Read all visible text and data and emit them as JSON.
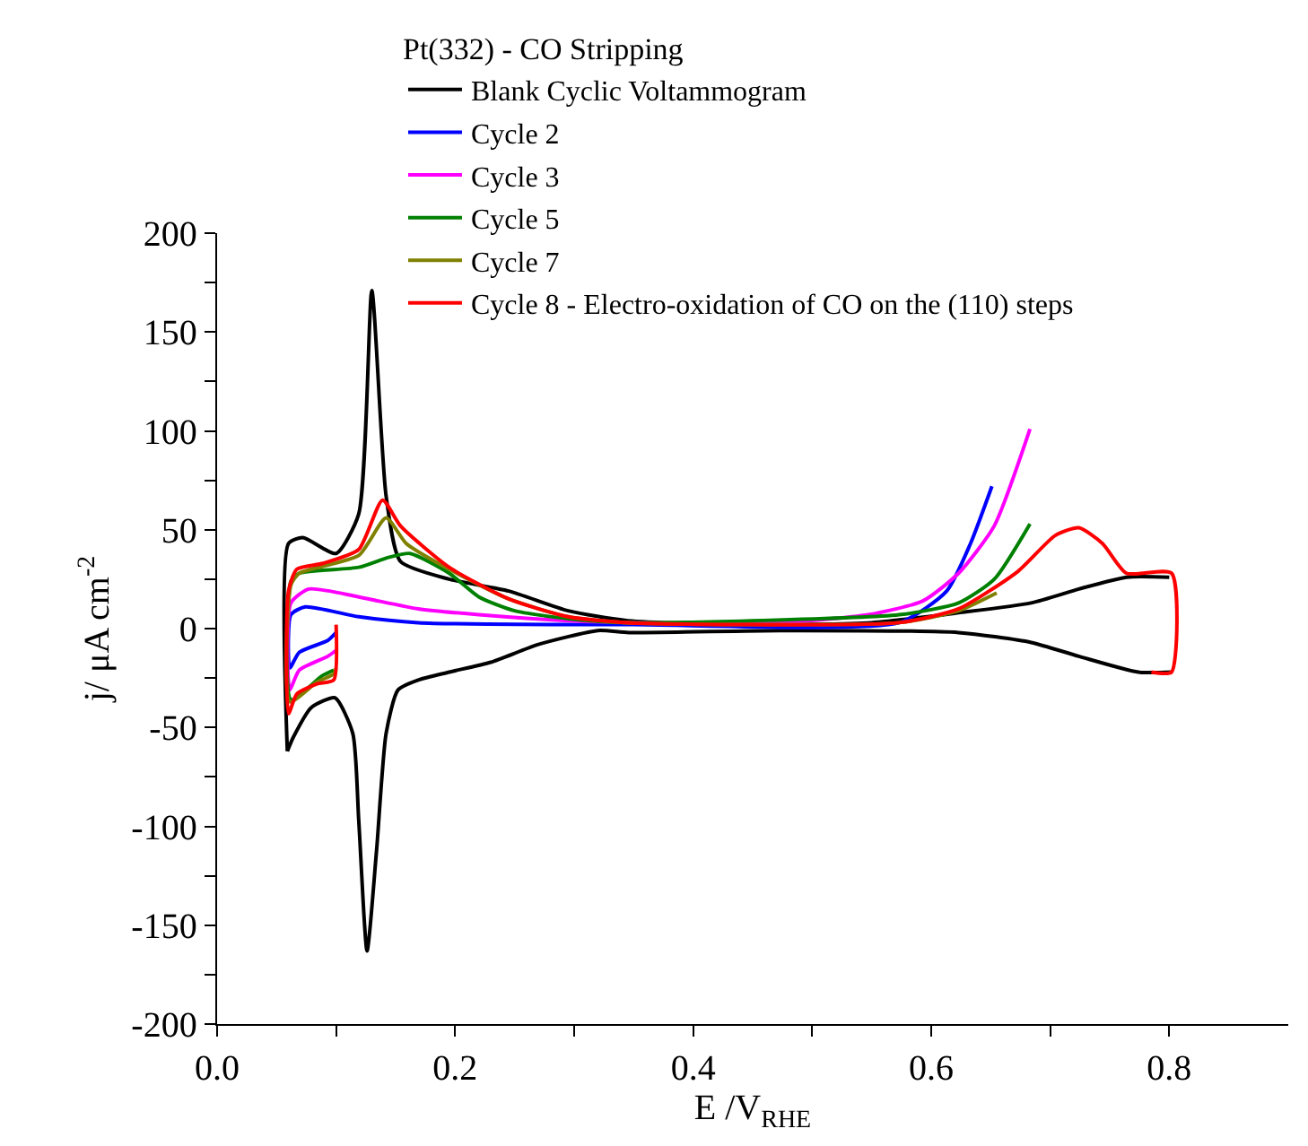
{
  "chart_data": {
    "type": "line",
    "xlabel": "E /V$_{RHE}$",
    "ylabel": "j/ μA cm$^{-2}$",
    "legend_title": "Pt(332) - CO Stripping",
    "xlim": [
      0,
      0.9
    ],
    "ylim": [
      -200,
      200
    ],
    "xticks": [
      {
        "value": 0,
        "label": "0.0"
      },
      {
        "value": 0.1,
        "label": null
      },
      {
        "value": 0.2,
        "label": "0.2"
      },
      {
        "value": 0.3,
        "label": null
      },
      {
        "value": 0.4,
        "label": "0.4"
      },
      {
        "value": 0.5,
        "label": null
      },
      {
        "value": 0.6,
        "label": "0.6"
      },
      {
        "value": 0.7,
        "label": null
      },
      {
        "value": 0.8,
        "label": "0.8"
      }
    ],
    "yticks": [
      -200,
      {
        "value": -175,
        "label": null
      },
      -150,
      {
        "value": -125,
        "label": null
      },
      -100,
      {
        "value": -75,
        "label": null
      },
      -50,
      {
        "value": -25,
        "label": null
      },
      0,
      {
        "value": 25,
        "label": null
      },
      50,
      {
        "value": 75,
        "label": null
      },
      100,
      {
        "value": 125,
        "label": null
      },
      150,
      {
        "value": 175,
        "label": null
      },
      200
    ],
    "legend": "top right",
    "marker": "none",
    "line_style": "solid",
    "series": [
      {
        "name": "Blank Cyclic Voltammogram",
        "color": "#000000",
        "x": [
          0.059,
          0.06,
          0.072,
          0.1,
          0.119,
          0.13,
          0.142,
          0.154,
          0.195,
          0.245,
          0.295,
          0.345,
          0.45,
          0.55,
          0.623,
          0.684,
          0.724,
          0.764,
          0.8
        ],
        "values": [
          -62,
          43,
          46,
          38,
          58,
          171,
          67,
          34,
          25,
          19,
          9,
          4,
          2,
          3,
          8,
          13,
          20,
          26,
          26
        ]
      },
      {
        "color": "#000000",
        "x": [
          0.802,
          0.774,
          0.724,
          0.684,
          0.623,
          0.472,
          0.346,
          0.32,
          0.27,
          0.23,
          0.195,
          0.169,
          0.152,
          0.142,
          0.134,
          0.126,
          0.119,
          0.114,
          0.099,
          0.079,
          0.064,
          0.059
        ],
        "values": [
          -22,
          -22,
          -14,
          -7,
          -2,
          -1,
          -2,
          -1,
          -8,
          -17,
          -22,
          -26,
          -31,
          -53,
          -112,
          -163,
          -97,
          -53,
          -35,
          -40,
          -55,
          -62
        ]
      },
      {
        "name": "Cycle 2",
        "color": "#0000ff",
        "x": [
          0.1,
          0.093,
          0.069,
          0.061,
          0.062,
          0.074,
          0.119,
          0.169,
          0.35,
          0.573,
          0.613,
          0.633,
          0.651
        ],
        "values": [
          -2,
          -6,
          -12,
          -20,
          7,
          11,
          6,
          3,
          2,
          3,
          19,
          43,
          72
        ]
      },
      {
        "name": "Cycle 3",
        "color": "#ff00ff",
        "x": [
          0.1,
          0.093,
          0.069,
          0.061,
          0.062,
          0.077,
          0.119,
          0.169,
          0.22,
          0.295,
          0.357,
          0.472,
          0.547,
          0.593,
          0.623,
          0.653,
          0.683
        ],
        "values": [
          -11,
          -14,
          -21,
          -31,
          13,
          20,
          16,
          10,
          7,
          4,
          3,
          3,
          7,
          14,
          28,
          52,
          101
        ]
      },
      {
        "name": "Cycle 5",
        "color": "#008000",
        "x": [
          0.098,
          0.088,
          0.062,
          0.062,
          0.069,
          0.119,
          0.144,
          0.162,
          0.195,
          0.22,
          0.25,
          0.295,
          0.345,
          0.573,
          0.623,
          0.653,
          0.683
        ],
        "values": [
          -21,
          -24,
          -36,
          24,
          28,
          31,
          36,
          38,
          28,
          16,
          9,
          5,
          3,
          7,
          13,
          25,
          53
        ]
      },
      {
        "name": "Cycle 7",
        "color": "#808000",
        "x": [
          0.1,
          0.098,
          0.084,
          0.061,
          0.062,
          0.069,
          0.119,
          0.142,
          0.159,
          0.195,
          0.245,
          0.295,
          0.345,
          0.573,
          0.623,
          0.655
        ],
        "values": [
          -20,
          -23,
          -27,
          -37,
          22,
          28,
          37,
          56,
          43,
          30,
          15,
          6,
          3,
          3,
          9,
          18
        ]
      },
      {
        "name": "Cycle 8 - Electro-oxidation of CO on the (110) steps",
        "color": "#ff0000",
        "x": [
          0.1,
          0.098,
          0.084,
          0.067,
          0.06,
          0.06,
          0.067,
          0.089,
          0.119,
          0.139,
          0.154,
          0.195,
          0.245,
          0.295,
          0.345,
          0.45,
          0.573,
          0.623,
          0.673,
          0.704,
          0.724,
          0.744,
          0.764,
          0.802,
          0.802,
          0.785
        ],
        "values": [
          2,
          -26,
          -28,
          -33,
          -43,
          19,
          30,
          33,
          40,
          65,
          52,
          31,
          15,
          6,
          3,
          2,
          3,
          10,
          29,
          47,
          51,
          43,
          28,
          28,
          -22,
          -22
        ]
      }
    ]
  }
}
